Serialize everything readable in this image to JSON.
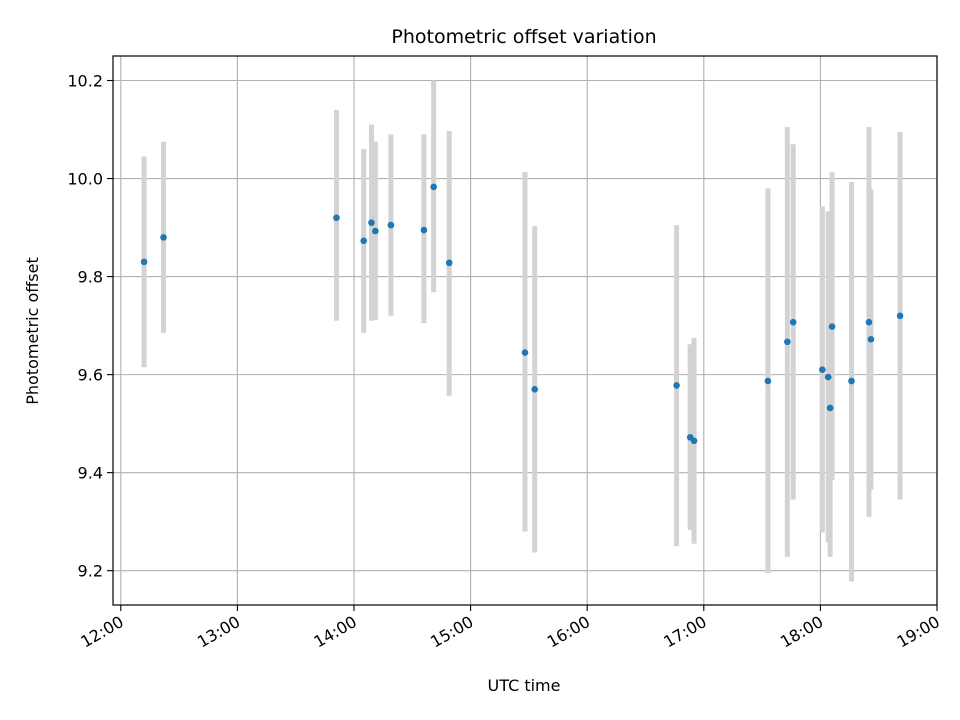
{
  "chart_data": {
    "type": "scatter",
    "title": "Photometric offset variation",
    "xlabel": "UTC time",
    "ylabel": "Photometric offset",
    "x_unit": "hours UTC",
    "xlim": [
      "11:56",
      "19:00"
    ],
    "ylim": [
      9.13,
      10.25
    ],
    "x_ticks": [
      "12:00",
      "13:00",
      "14:00",
      "15:00",
      "16:00",
      "17:00",
      "18:00",
      "19:00"
    ],
    "y_ticks": [
      "9.2",
      "9.4",
      "9.6",
      "9.8",
      "10.0",
      "10.2"
    ],
    "grid": true,
    "legend": "none",
    "marker_color": "#1f77b4",
    "errorbar_color": "#d3d3d3",
    "points": [
      {
        "t": "12:12",
        "y": 9.83,
        "lo": 9.615,
        "hi": 10.045
      },
      {
        "t": "12:22",
        "y": 9.88,
        "lo": 9.685,
        "hi": 10.075
      },
      {
        "t": "13:51",
        "y": 9.92,
        "lo": 9.71,
        "hi": 10.14
      },
      {
        "t": "14:05",
        "y": 9.873,
        "lo": 9.685,
        "hi": 10.06
      },
      {
        "t": "14:09",
        "y": 9.91,
        "lo": 9.71,
        "hi": 10.11
      },
      {
        "t": "14:11",
        "y": 9.893,
        "lo": 9.712,
        "hi": 10.075
      },
      {
        "t": "14:19",
        "y": 9.905,
        "lo": 9.72,
        "hi": 10.09
      },
      {
        "t": "14:36",
        "y": 9.895,
        "lo": 9.705,
        "hi": 10.09
      },
      {
        "t": "14:41",
        "y": 9.983,
        "lo": 9.768,
        "hi": 10.2
      },
      {
        "t": "14:49",
        "y": 9.828,
        "lo": 9.557,
        "hi": 10.097
      },
      {
        "t": "15:28",
        "y": 9.645,
        "lo": 9.28,
        "hi": 10.013
      },
      {
        "t": "15:33",
        "y": 9.57,
        "lo": 9.237,
        "hi": 9.903
      },
      {
        "t": "16:46",
        "y": 9.578,
        "lo": 9.25,
        "hi": 9.905
      },
      {
        "t": "16:53",
        "y": 9.472,
        "lo": 9.283,
        "hi": 9.662
      },
      {
        "t": "16:55",
        "y": 9.465,
        "lo": 9.255,
        "hi": 9.675
      },
      {
        "t": "17:33",
        "y": 9.587,
        "lo": 9.195,
        "hi": 9.98
      },
      {
        "t": "17:43",
        "y": 9.667,
        "lo": 9.228,
        "hi": 10.105
      },
      {
        "t": "17:46",
        "y": 9.707,
        "lo": 9.345,
        "hi": 10.07
      },
      {
        "t": "18:01",
        "y": 9.61,
        "lo": 9.278,
        "hi": 9.943
      },
      {
        "t": "18:04",
        "y": 9.595,
        "lo": 9.258,
        "hi": 9.933
      },
      {
        "t": "18:05",
        "y": 9.532,
        "lo": 9.228,
        "hi": 9.832
      },
      {
        "t": "18:06",
        "y": 9.698,
        "lo": 9.385,
        "hi": 10.013
      },
      {
        "t": "18:16",
        "y": 9.587,
        "lo": 9.178,
        "hi": 9.993
      },
      {
        "t": "18:25",
        "y": 9.707,
        "lo": 9.31,
        "hi": 10.105
      },
      {
        "t": "18:26",
        "y": 9.672,
        "lo": 9.365,
        "hi": 9.978
      },
      {
        "t": "18:41",
        "y": 9.72,
        "lo": 9.345,
        "hi": 10.095
      }
    ]
  }
}
